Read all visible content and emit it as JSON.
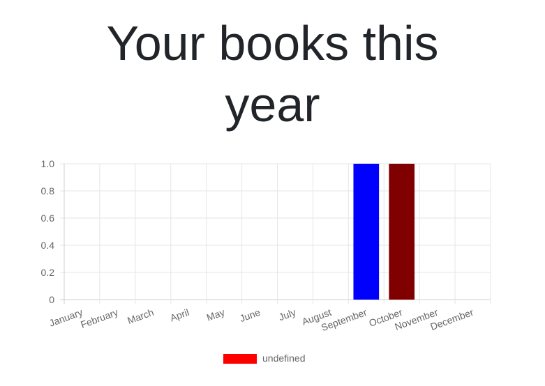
{
  "page": {
    "title_line1": "Your books this",
    "title_line2": "year"
  },
  "chart_data": {
    "type": "bar",
    "categories": [
      "January",
      "February",
      "March",
      "April",
      "May",
      "June",
      "July",
      "August",
      "September",
      "October",
      "November",
      "December"
    ],
    "values": [
      0,
      0,
      0,
      0,
      0,
      0,
      0,
      0,
      1,
      1,
      0,
      0
    ],
    "bar_colors": [
      "#ff0000",
      "#ff0000",
      "#ff0000",
      "#ff0000",
      "#ff0000",
      "#ff0000",
      "#ff0000",
      "#ff0000",
      "#0000ff",
      "#800000",
      "#ff0000",
      "#ff0000"
    ],
    "ylim": [
      0,
      1
    ],
    "yticks": [
      "0",
      "0.2",
      "0.4",
      "0.6",
      "0.8",
      "1.0"
    ],
    "grid": true,
    "legend": {
      "placement": "bottom",
      "entries": [
        {
          "label": "undefined",
          "color": "#ff0000"
        }
      ]
    }
  }
}
